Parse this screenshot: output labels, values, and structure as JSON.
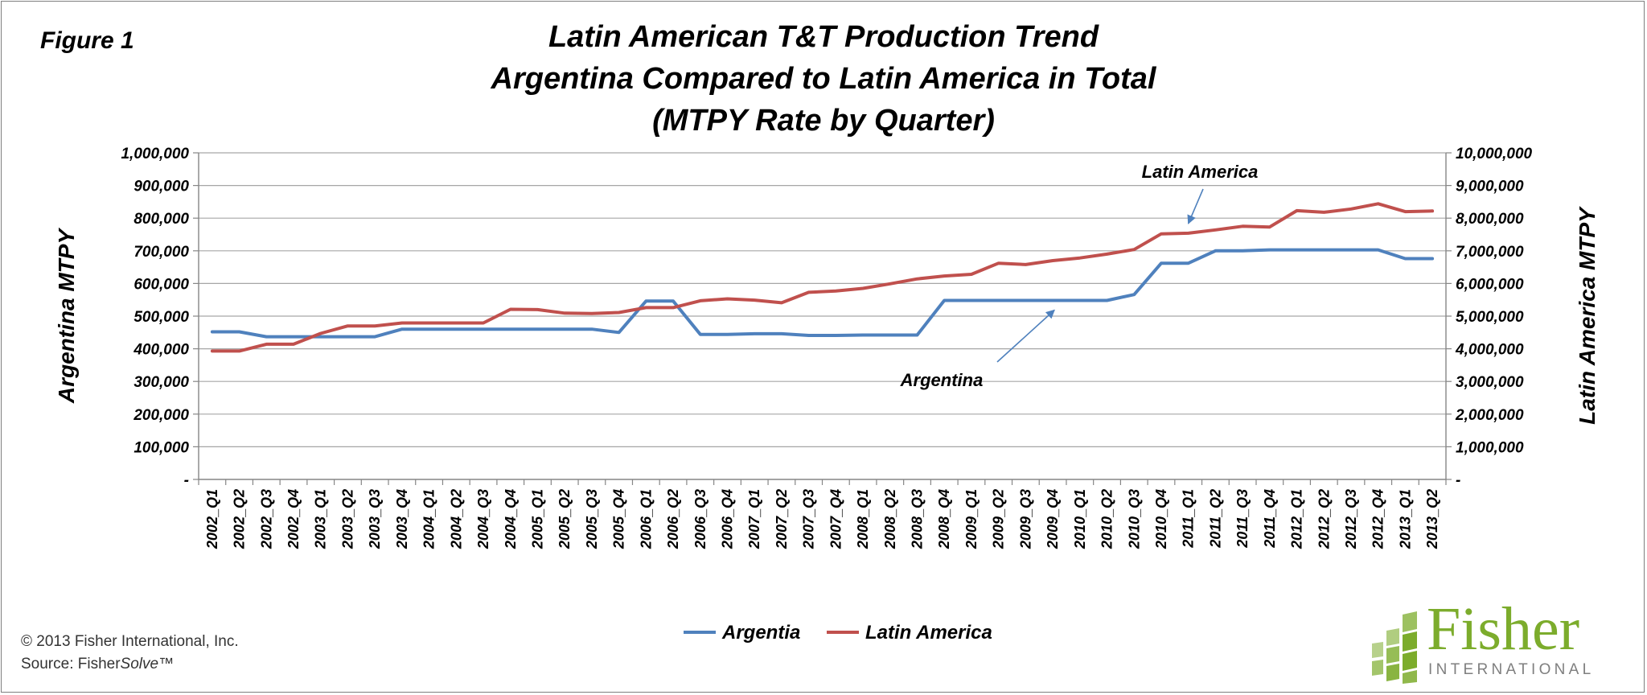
{
  "figure_label": "Figure 1",
  "copyright": {
    "line1": "© 2013 Fisher International, Inc.",
    "line2_prefix": "Source: Fisher",
    "line2_italic": "Solve",
    "line2_suffix": "™"
  },
  "logo": {
    "word": "Fisher",
    "sub": "INTERNATIONAL"
  },
  "colors": {
    "argentina": "#4f81bd",
    "latin_america": "#c0504d",
    "grid": "#a6a6a6",
    "axis": "#868686",
    "logo_green": "#7cac2c"
  },
  "chart_data": {
    "type": "line",
    "title": [
      "Latin American T&T Production Trend",
      "Argentina Compared to Latin America in Total",
      "(MTPY Rate by Quarter)"
    ],
    "ylabel_left": "Argentina   MTPY",
    "ylabel_right": "Latin America   MTPY",
    "ylim_left": [
      0,
      1000000
    ],
    "ylim_right": [
      0,
      10000000
    ],
    "yticks_left": [
      "-",
      "100,000",
      "200,000",
      "300,000",
      "400,000",
      "500,000",
      "600,000",
      "700,000",
      "800,000",
      "900,000",
      "1,000,000"
    ],
    "yticks_right": [
      "-",
      "1,000,000",
      "2,000,000",
      "3,000,000",
      "4,000,000",
      "5,000,000",
      "6,000,000",
      "7,000,000",
      "8,000,000",
      "9,000,000",
      "10,000,000"
    ],
    "grid": "horizontal",
    "legend_position": "bottom-center",
    "categories": [
      "2002_Q1",
      "2002_Q2",
      "2002_Q3",
      "2002_Q4",
      "2003_Q1",
      "2003_Q2",
      "2003_Q3",
      "2003_Q4",
      "2004_Q1",
      "2004_Q2",
      "2004_Q3",
      "2004_Q4",
      "2005_Q1",
      "2005_Q2",
      "2005_Q3",
      "2005_Q4",
      "2006_Q1",
      "2006_Q2",
      "2006_Q3",
      "2006_Q4",
      "2007_Q1",
      "2007_Q2",
      "2007_Q3",
      "2007_Q4",
      "2008_Q1",
      "2008_Q2",
      "2008_Q3",
      "2008_Q4",
      "2009_Q1",
      "2009_Q2",
      "2009_Q3",
      "2009_Q4",
      "2010_Q1",
      "2010_Q2",
      "2010_Q3",
      "2010_Q4",
      "2011_Q1",
      "2011_Q2",
      "2011_Q3",
      "2011_Q4",
      "2012_Q1",
      "2012_Q2",
      "2012_Q3",
      "2012_Q4",
      "2013_Q1",
      "2013_Q2"
    ],
    "series": [
      {
        "name": "Argentia",
        "axis": "left",
        "values": [
          452000,
          452000,
          437000,
          437000,
          437000,
          437000,
          437000,
          460000,
          460000,
          460000,
          460000,
          460000,
          460000,
          460000,
          460000,
          450000,
          546000,
          546000,
          444000,
          444000,
          446000,
          446000,
          441000,
          441000,
          442000,
          442000,
          442000,
          548000,
          548000,
          548000,
          548000,
          548000,
          548000,
          548000,
          566000,
          662000,
          662000,
          700000,
          700000,
          703000,
          703000,
          703000,
          703000,
          703000,
          676000,
          676000
        ]
      },
      {
        "name": "Latin America",
        "axis": "right",
        "values": [
          3930000,
          3930000,
          4140000,
          4140000,
          4470000,
          4700000,
          4700000,
          4790000,
          4790000,
          4790000,
          4790000,
          5210000,
          5200000,
          5090000,
          5080000,
          5110000,
          5260000,
          5260000,
          5470000,
          5530000,
          5490000,
          5410000,
          5730000,
          5770000,
          5850000,
          5990000,
          6140000,
          6230000,
          6280000,
          6620000,
          6580000,
          6700000,
          6780000,
          6900000,
          7040000,
          7520000,
          7540000,
          7640000,
          7750000,
          7730000,
          8230000,
          8180000,
          8280000,
          8440000,
          8200000,
          8220000
        ]
      }
    ],
    "annotations": [
      {
        "text": "Latin America",
        "target_series": "Latin America",
        "target_category": "2011_Q1"
      },
      {
        "text": "Argentina",
        "target_series": "Argentia",
        "target_category": "2009_Q4"
      }
    ]
  }
}
